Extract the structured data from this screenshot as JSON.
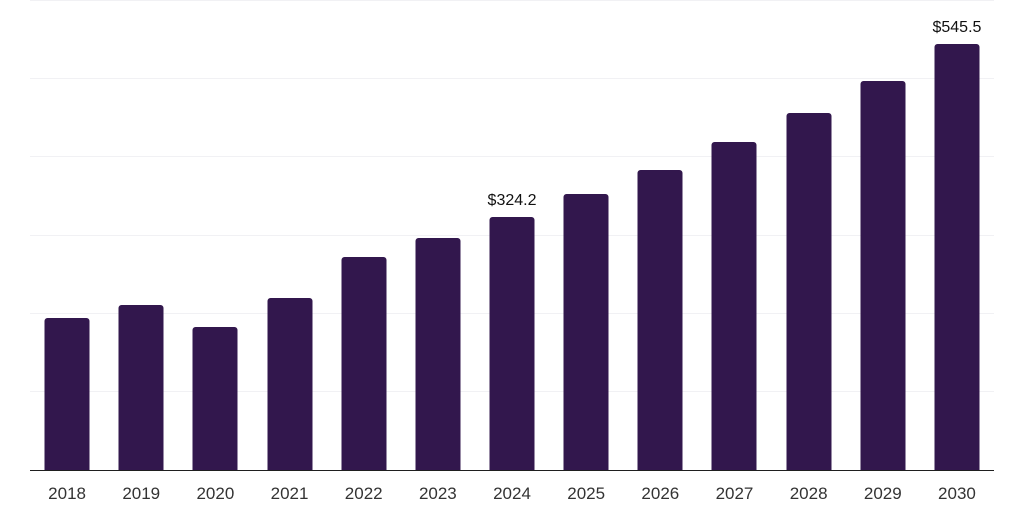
{
  "chart_data": {
    "type": "bar",
    "title": "",
    "xlabel": "",
    "ylabel": "",
    "categories": [
      "2018",
      "2019",
      "2020",
      "2021",
      "2022",
      "2023",
      "2024",
      "2025",
      "2026",
      "2027",
      "2028",
      "2029",
      "2030"
    ],
    "values": [
      194.5,
      211.1,
      183.0,
      220.0,
      272.5,
      296.5,
      324.2,
      353.5,
      384.0,
      420.0,
      457.0,
      498.0,
      545.5
    ],
    "point_labels": {
      "2024": "$324.2",
      "2030": "$545.5"
    },
    "ylim": [
      0,
      600
    ],
    "grid_step": 100,
    "grid": true,
    "legend": false,
    "colors": {
      "bar": "#32174d",
      "gridline": "#f1f1f4",
      "axis_line": "#1f1f1f",
      "tick_label": "#333333",
      "value_label": "#111111",
      "background": "#ffffff"
    }
  }
}
